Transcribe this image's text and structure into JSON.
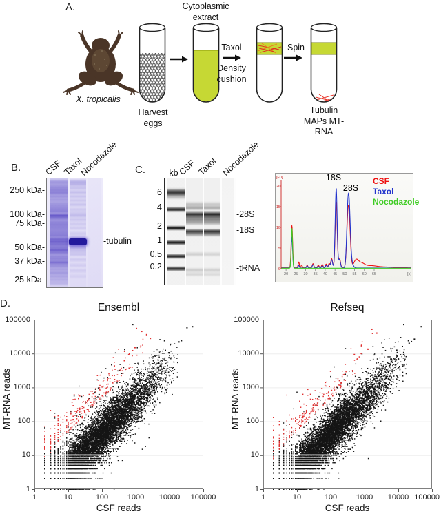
{
  "panelA": {
    "label": "A.",
    "frog_caption": "X. tropicalis",
    "harvest_label": "Harvest eggs",
    "extract_label": "Cytoplasmic extract",
    "taxol_label": "Taxol",
    "density_label": "Density cushion",
    "spin_label": "Spin",
    "result_label": "Tubulin MAPs MT-RNA",
    "liquid_color": "#c6d834",
    "microtubule_color": "#e0331f"
  },
  "panelB": {
    "label": "B.",
    "lanes": [
      "CSF",
      "Taxol",
      "Nocodazole"
    ],
    "markers": [
      "250 kDa-",
      "100 kDa-",
      "75 kDa-",
      "50 kDa-",
      "37 kDa-",
      "25 kDa-"
    ],
    "band_label": "-tubulin",
    "gel": {
      "band_rgb": "85,70,195",
      "tubulin_band_color": "#241a9c",
      "csf_bands": [
        [
          80,
          0.18,
          70
        ],
        [
          5,
          0.35,
          2
        ],
        [
          9,
          0.3,
          2
        ],
        [
          13,
          0.42,
          2
        ],
        [
          17,
          0.48,
          2
        ],
        [
          21,
          0.5,
          2
        ],
        [
          26,
          0.38,
          2
        ],
        [
          31,
          0.32,
          2
        ],
        [
          36,
          0.3,
          2
        ],
        [
          40,
          0.36,
          2
        ],
        [
          44,
          0.42,
          2
        ],
        [
          48,
          0.5,
          2
        ],
        [
          54,
          0.82,
          2.5
        ],
        [
          58,
          0.5,
          2
        ],
        [
          63,
          0.42,
          2
        ],
        [
          67,
          0.46,
          2
        ],
        [
          71,
          0.42,
          2
        ],
        [
          75,
          0.38,
          2
        ],
        [
          79,
          0.42,
          2
        ],
        [
          83,
          0.48,
          2
        ],
        [
          88,
          0.62,
          2
        ],
        [
          92,
          0.72,
          2.5
        ],
        [
          96,
          0.55,
          2
        ],
        [
          100,
          0.5,
          2
        ],
        [
          104,
          0.72,
          2.2
        ],
        [
          108,
          0.5,
          2
        ],
        [
          113,
          0.42,
          2
        ],
        [
          117,
          0.46,
          2
        ],
        [
          122,
          0.66,
          2.5
        ],
        [
          127,
          0.42,
          2
        ],
        [
          132,
          0.32,
          2
        ],
        [
          137,
          0.36,
          2
        ],
        [
          142,
          0.3,
          2
        ],
        [
          147,
          0.26,
          2
        ],
        [
          152,
          0.2,
          2
        ]
      ],
      "taxol_bands": [
        [
          5,
          0.3,
          2.5
        ],
        [
          9,
          0.24,
          2
        ],
        [
          14,
          0.2,
          2
        ],
        [
          20,
          0.22,
          2
        ],
        [
          26,
          0.18,
          2
        ],
        [
          32,
          0.16,
          2
        ],
        [
          38,
          0.18,
          2
        ],
        [
          45,
          0.15,
          2
        ],
        [
          50,
          0.14,
          2
        ],
        [
          54,
          0.22,
          2
        ],
        [
          60,
          0.16,
          2
        ],
        [
          66,
          0.13,
          2
        ],
        [
          72,
          0.12,
          2
        ],
        [
          80,
          0.12,
          2
        ],
        [
          100,
          0.3,
          2.2
        ],
        [
          105,
          0.2,
          2
        ],
        [
          110,
          0.16,
          2
        ],
        [
          118,
          0.12,
          2
        ],
        [
          126,
          0.1,
          2
        ],
        [
          134,
          0.1,
          2
        ],
        [
          142,
          0.08,
          2
        ]
      ],
      "noc_bands": []
    }
  },
  "panelC": {
    "label": "C.",
    "kb_label": "kb",
    "lanes": [
      "CSF",
      "Taxol",
      "Nocodazole"
    ],
    "ladder_labels": [
      "6",
      "4",
      "2",
      "1",
      "0.5",
      "0.2"
    ],
    "side_labels": [
      "-28S",
      "-18S",
      "-tRNA"
    ],
    "gel": {
      "band_rgb": "25,25,25",
      "ladder_bands": [
        [
          22,
          0.5,
          7
        ],
        [
          20,
          0.72,
          3
        ],
        [
          45,
          0.88,
          2.5
        ],
        [
          72,
          0.95,
          2
        ],
        [
          93,
          0.95,
          2
        ],
        [
          113,
          0.9,
          2
        ],
        [
          131,
          0.86,
          2
        ]
      ],
      "csf_bands": [
        [
          38,
          0.22,
          3
        ],
        [
          43,
          0.3,
          2
        ],
        [
          52,
          0.85,
          2.5
        ],
        [
          56,
          0.5,
          2
        ],
        [
          60,
          0.42,
          2
        ],
        [
          64,
          0.3,
          2.5
        ],
        [
          77,
          0.78,
          2.5
        ],
        [
          81,
          0.35,
          2
        ],
        [
          110,
          0.15,
          2
        ],
        [
          133,
          0.16,
          2
        ],
        [
          139,
          0.12,
          2
        ]
      ],
      "taxol_bands": [
        [
          38,
          0.18,
          3
        ],
        [
          43,
          0.28,
          2
        ],
        [
          52,
          0.9,
          2.5
        ],
        [
          56,
          0.55,
          2
        ],
        [
          60,
          0.45,
          2
        ],
        [
          64,
          0.33,
          2.5
        ],
        [
          77,
          0.84,
          2.5
        ],
        [
          81,
          0.4,
          2
        ],
        [
          110,
          0.13,
          2
        ],
        [
          133,
          0.14,
          2
        ],
        [
          139,
          0.1,
          2
        ]
      ],
      "noc_bands": []
    }
  },
  "panelD": {
    "label": "D.",
    "tick_labels": [
      "1",
      "10",
      "100",
      "1000",
      "10000",
      "100000"
    ],
    "plots": [
      {
        "title": "Ensembl",
        "xlabel": "CSF reads",
        "ylabel": "MT-RNA reads"
      },
      {
        "title": "Refseq",
        "xlabel": "CSF reads",
        "ylabel": "MT-RNA reads"
      }
    ]
  },
  "chart_data": [
    {
      "id": "bioanalyzer_trace",
      "type": "line",
      "x_unit": "[s]",
      "y_unit": "[FU]",
      "x_ticks": [
        20,
        25,
        30,
        35,
        40,
        45,
        50,
        55,
        60,
        65
      ],
      "y_ticks": [
        0,
        5,
        10,
        15,
        20
      ],
      "x_range": [
        17.5,
        84
      ],
      "y_range": [
        0,
        22.5
      ],
      "peak_annotations": [
        {
          "label": "18S",
          "s": 45.6
        },
        {
          "label": "28S",
          "s": 52.1
        }
      ],
      "series": [
        {
          "name": "CSF",
          "color": "#ee1111",
          "baseline": 0.22,
          "peaks": [
            [
              23,
              10.2,
              0.38
            ],
            [
              26.5,
              1.4,
              0.32
            ],
            [
              28,
              0.7,
              0.3
            ],
            [
              30.8,
              0.6,
              0.35
            ],
            [
              33.8,
              1.0,
              0.4
            ],
            [
              36.5,
              0.6,
              0.4
            ],
            [
              38.5,
              0.8,
              0.4
            ],
            [
              40.5,
              0.9,
              0.4
            ],
            [
              42,
              1.0,
              0.4
            ],
            [
              43.3,
              2.2,
              0.45
            ],
            [
              45.6,
              16.0,
              0.5
            ],
            [
              47.3,
              2.3,
              0.5
            ],
            [
              51.3,
              4.5,
              0.55
            ],
            [
              52.1,
              13.2,
              0.7
            ],
            [
              55.8,
              1.8,
              1.2
            ],
            [
              58.5,
              1.0,
              1.6
            ],
            [
              63,
              0.45,
              3
            ],
            [
              70,
              0.2,
              5
            ]
          ]
        },
        {
          "name": "Taxol",
          "color": "#2233cc",
          "baseline": 0.18,
          "peaks": [
            [
              23,
              7.5,
              0.36
            ],
            [
              26.5,
              0.6,
              0.32
            ],
            [
              30.8,
              0.5,
              0.35
            ],
            [
              33.8,
              0.8,
              0.4
            ],
            [
              36.5,
              0.4,
              0.4
            ],
            [
              38.5,
              0.5,
              0.4
            ],
            [
              40.5,
              0.6,
              0.4
            ],
            [
              42,
              0.8,
              0.4
            ],
            [
              43.3,
              2.0,
              0.45
            ],
            [
              45.6,
              19.3,
              0.5
            ],
            [
              47.3,
              2.0,
              0.5
            ],
            [
              51.3,
              5.2,
              0.55
            ],
            [
              52.1,
              15.8,
              0.7
            ],
            [
              53.6,
              0.9,
              0.8
            ]
          ]
        },
        {
          "name": "Nocodazole",
          "color": "#3ecc22",
          "baseline": 0.12,
          "peaks": [
            [
              23,
              9.6,
              0.34
            ]
          ]
        }
      ]
    },
    {
      "id": "ensembl_scatter",
      "type": "scatter",
      "title": "Ensembl",
      "xlabel": "CSF reads",
      "ylabel": "MT-RNA reads",
      "log_scale": true,
      "axis_range": [
        1,
        100000
      ],
      "tick_values": [
        1,
        10,
        100,
        1000,
        10000,
        100000
      ],
      "point_colors": {
        "main": "#151515",
        "enriched": "#e03131"
      },
      "main_cloud": {
        "n": 9000,
        "seed": 20210,
        "logx_mean": 1.78,
        "logx_sd": 0.95,
        "logy_offset": -0.38,
        "noise_sd": 0.34,
        "wide_frac": 0.08,
        "wide_sd": 0.7
      },
      "enriched_cloud": {
        "n": 265,
        "seed": 911,
        "logx_mean": 1.15,
        "logx_sd": 1.0,
        "logy_offset": 0.68,
        "noise_sd": 0.38
      },
      "outliers_main": [
        [
          33000,
          58000
        ],
        [
          48000,
          62000
        ],
        [
          19000,
          22000
        ],
        [
          22500,
          24000
        ],
        [
          9500,
          10500
        ],
        [
          520,
          47
        ]
      ],
      "outliers_enriched": [
        [
          1500,
          45000
        ],
        [
          2100,
          36000
        ],
        [
          2700,
          28000
        ],
        [
          950,
          15000
        ],
        [
          620,
          9200
        ]
      ]
    },
    {
      "id": "refseq_scatter",
      "type": "scatter",
      "title": "Refseq",
      "xlabel": "CSF reads",
      "ylabel": "MT-RNA reads",
      "log_scale": true,
      "axis_range": [
        1,
        100000
      ],
      "tick_values": [
        1,
        10,
        100,
        1000,
        10000,
        100000
      ],
      "point_colors": {
        "main": "#151515",
        "enriched": "#e03131"
      },
      "main_cloud": {
        "n": 8800,
        "seed": 77151,
        "logx_mean": 1.8,
        "logx_sd": 0.93,
        "logy_offset": -0.38,
        "noise_sd": 0.32,
        "wide_frac": 0.07,
        "wide_sd": 0.7
      },
      "enriched_cloud": {
        "n": 235,
        "seed": 4242,
        "logx_mean": 1.1,
        "logx_sd": 1.0,
        "logy_offset": 0.68,
        "noise_sd": 0.38
      },
      "outliers_main": [
        [
          48000,
          62000
        ],
        [
          20000,
          24000
        ],
        [
          24500,
          22500
        ],
        [
          30000,
          26500
        ],
        [
          21000,
          20000
        ],
        [
          9000,
          12500
        ]
      ],
      "outliers_enriched": [
        [
          1650,
          52000
        ],
        [
          2300,
          40000
        ],
        [
          820,
          17500
        ],
        [
          500,
          9300
        ],
        [
          1250,
          13500
        ]
      ]
    }
  ]
}
